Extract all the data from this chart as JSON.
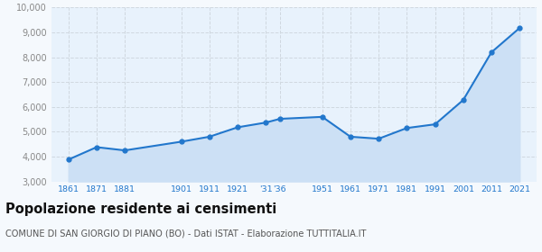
{
  "years": [
    1861,
    1871,
    1881,
    1901,
    1911,
    1921,
    1931,
    1936,
    1951,
    1961,
    1971,
    1981,
    1991,
    2001,
    2011,
    2021
  ],
  "values": [
    3880,
    4380,
    4250,
    4600,
    4800,
    5180,
    5370,
    5520,
    5600,
    4800,
    4720,
    5150,
    5300,
    6280,
    8200,
    9180
  ],
  "x_tick_years": [
    1861,
    1871,
    1881,
    1901,
    1911,
    1921,
    1931,
    1936,
    1951,
    1961,
    1971,
    1981,
    1991,
    2001,
    2011,
    2021
  ],
  "x_tick_labels": [
    "1861",
    "1871",
    "1881",
    "1901",
    "1911",
    "1921",
    "'31",
    "'36",
    "1951",
    "1961",
    "1971",
    "1981",
    "1991",
    "2001",
    "2011",
    "2021"
  ],
  "ylim": [
    3000,
    10000
  ],
  "yticks": [
    3000,
    4000,
    5000,
    6000,
    7000,
    8000,
    9000,
    10000
  ],
  "ytick_labels": [
    "3,000",
    "4,000",
    "5,000",
    "6,000",
    "7,000",
    "8,000",
    "9,000",
    "10,000"
  ],
  "line_color": "#2277cc",
  "fill_color": "#cce0f5",
  "marker_color": "#2277cc",
  "background_color": "#f5f9fd",
  "plot_bg_color": "#e8f2fc",
  "grid_color": "#d0d8e0",
  "title": "Popolazione residente ai censimenti",
  "subtitle": "COMUNE DI SAN GIORGIO DI PIANO (BO) - Dati ISTAT - Elaborazione TUTTITALIA.IT",
  "title_fontsize": 10.5,
  "subtitle_fontsize": 7.0,
  "ytick_color": "#888888",
  "xtick_color": "#2277cc"
}
